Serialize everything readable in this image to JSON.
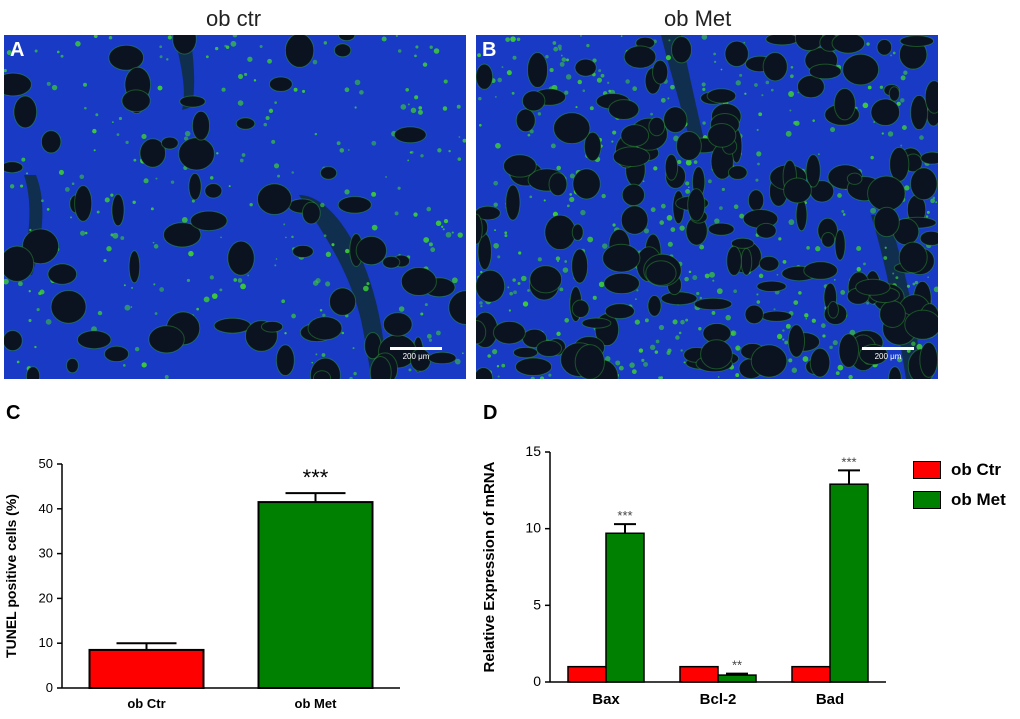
{
  "top_panels": {
    "A": {
      "letter": "A",
      "title": "ob ctr",
      "scale_label": "200 μm"
    },
    "B": {
      "letter": "B",
      "title": "ob Met",
      "scale_label": "200 μm"
    }
  },
  "colors": {
    "ctr": "#ff0000",
    "met": "#008000",
    "tissue": "#1d3fd8",
    "vacuole": "#0b1320",
    "tunel": "#3cc83a"
  },
  "chart_data": [
    {
      "panel": "C",
      "type": "bar",
      "categories": [
        "ob Ctr",
        "ob Met"
      ],
      "values": [
        8.5,
        41.5
      ],
      "errors": [
        1.5,
        2.0
      ],
      "colors": [
        "#ff0000",
        "#008000"
      ],
      "annotations": [
        "",
        "***"
      ],
      "ylabel": "TUNEL positive cells (%)",
      "ylim": [
        0,
        50
      ],
      "yticks": [
        0,
        10,
        20,
        30,
        40,
        50
      ]
    },
    {
      "panel": "D",
      "type": "bar",
      "categories": [
        "Bax",
        "Bcl-2",
        "Bad"
      ],
      "series": [
        {
          "name": "ob Ctr",
          "values": [
            1.0,
            1.0,
            1.0
          ],
          "errors": [
            0.1,
            0.1,
            0.1
          ],
          "color": "#ff0000"
        },
        {
          "name": "ob Met",
          "values": [
            9.7,
            0.45,
            12.9
          ],
          "errors": [
            0.6,
            0.1,
            0.9
          ],
          "color": "#008000"
        }
      ],
      "annotations": [
        "***",
        "**",
        "***"
      ],
      "ylabel": "Relative Expression of mRNA",
      "ylim": [
        0,
        15
      ],
      "yticks": [
        0,
        5,
        10,
        15
      ],
      "legend": "right"
    }
  ]
}
